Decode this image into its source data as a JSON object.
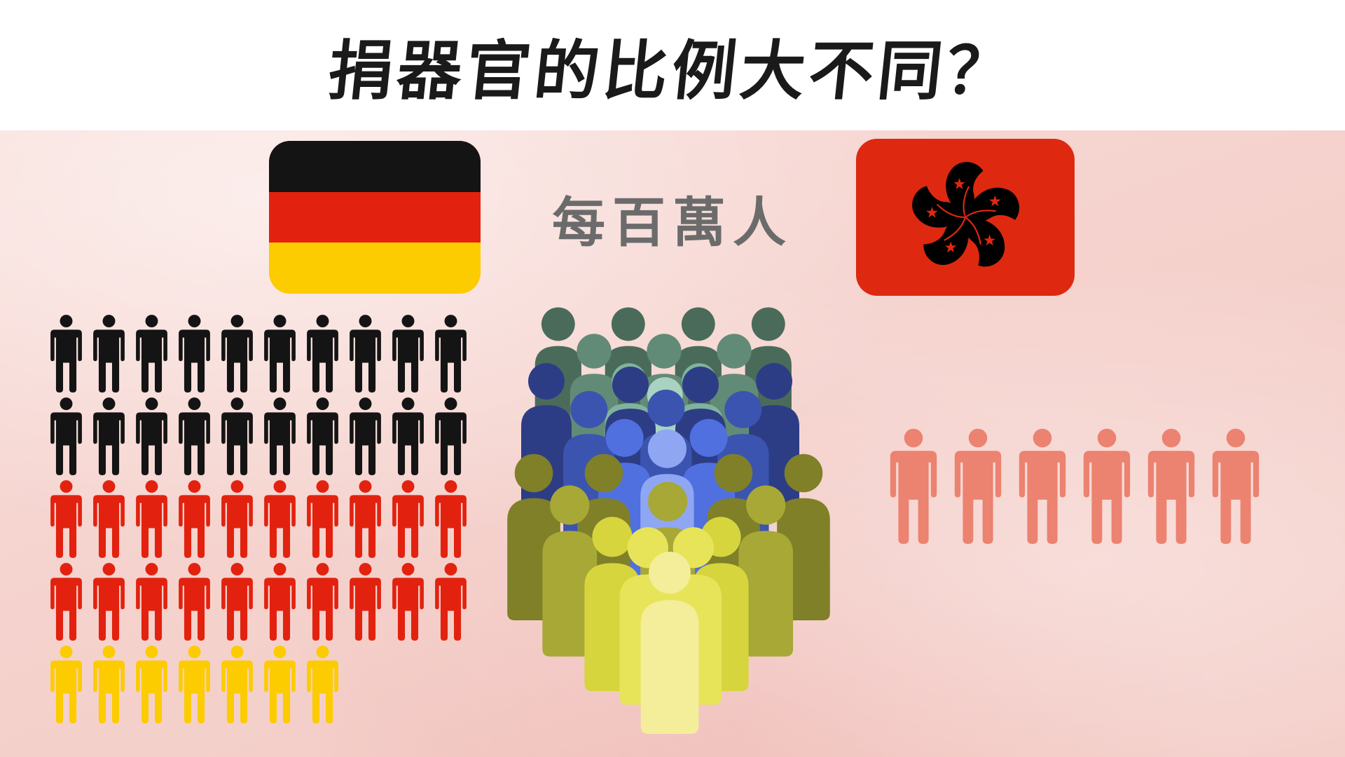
{
  "header": {
    "title": "捐器官的比例大不同？"
  },
  "subtitle": "每百萬人",
  "icons": {
    "germany_flag": "germany-flag-icon",
    "hongkong_flag": "hong-kong-flag-icon",
    "person": "person-icon",
    "crowd": "crowd-icon"
  },
  "colors": {
    "de_black": "#141414",
    "de_red": "#e2220f",
    "de_gold": "#fccb00",
    "hk_red": "#de2910",
    "hk_figure": "#ec8270",
    "subtitle_gray": "#6b6b6b"
  },
  "germany": {
    "groups": [
      {
        "color": "#141414",
        "count": 20
      },
      {
        "color": "#e2220f",
        "count": 20
      },
      {
        "color": "#fccb00",
        "count": 7
      }
    ]
  },
  "hongkong": {
    "color": "#ec8270",
    "count": 6
  }
}
